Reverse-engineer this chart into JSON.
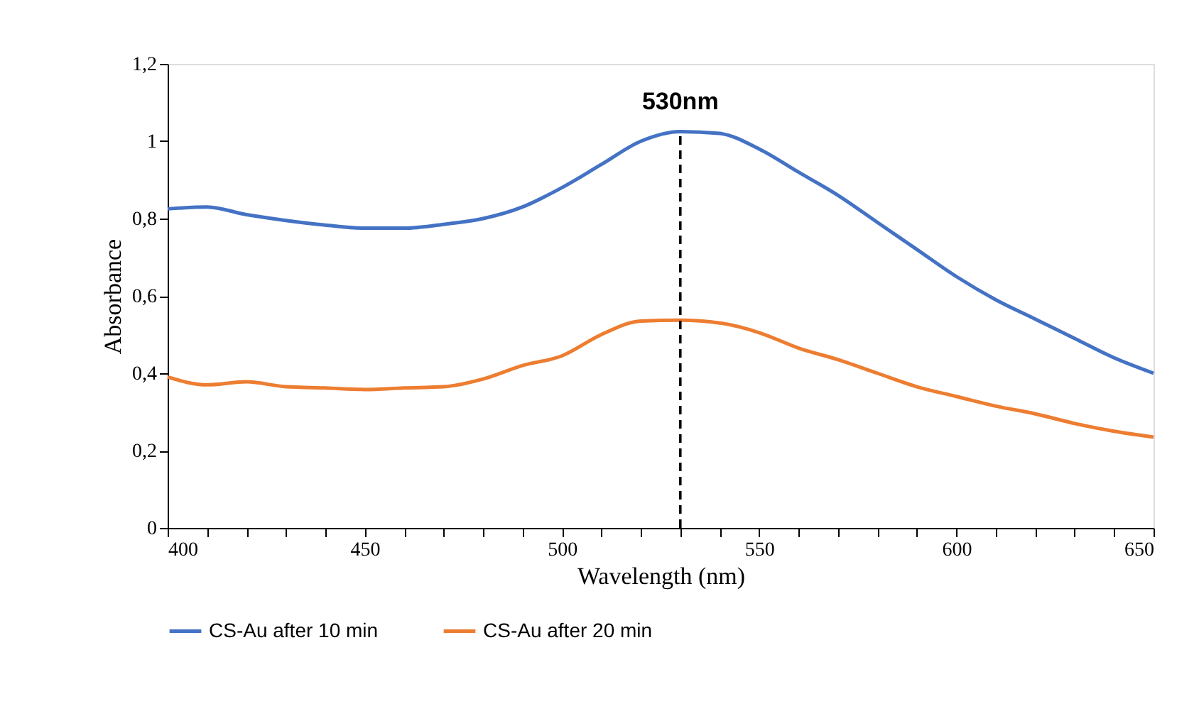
{
  "chart_data": {
    "type": "line",
    "xlabel": "Wavelength  (nm)",
    "ylabel": "Absorbance",
    "x": [
      400,
      410,
      420,
      430,
      440,
      450,
      460,
      470,
      480,
      490,
      500,
      510,
      520,
      530,
      540,
      550,
      560,
      570,
      580,
      590,
      600,
      610,
      620,
      630,
      640,
      650
    ],
    "series": [
      {
        "name": "CS-Au after 10 min",
        "color": "#4472c4",
        "values": [
          0.825,
          0.83,
          0.81,
          0.795,
          0.783,
          0.775,
          0.775,
          0.785,
          0.8,
          0.83,
          0.88,
          0.94,
          1.0,
          1.025,
          1.02,
          0.98,
          0.92,
          0.86,
          0.79,
          0.72,
          0.65,
          0.59,
          0.54,
          0.49,
          0.44,
          0.4
        ]
      },
      {
        "name": "CS-Au after 20 min",
        "color": "#ed7d31",
        "values": [
          0.39,
          0.37,
          0.378,
          0.365,
          0.362,
          0.358,
          0.362,
          0.365,
          0.385,
          0.42,
          0.445,
          0.5,
          0.535,
          0.537,
          0.53,
          0.505,
          0.465,
          0.435,
          0.4,
          0.365,
          0.34,
          0.315,
          0.295,
          0.27,
          0.25,
          0.235
        ]
      }
    ],
    "xlim": [
      400,
      650
    ],
    "xticks": [
      400,
      {
        "value": 410,
        "label": null
      },
      {
        "value": 420,
        "label": null
      },
      {
        "value": 430,
        "label": null
      },
      {
        "value": 440,
        "label": null
      },
      450,
      {
        "value": 460,
        "label": null
      },
      {
        "value": 470,
        "label": null
      },
      {
        "value": 480,
        "label": null
      },
      {
        "value": 490,
        "label": null
      },
      500,
      {
        "value": 510,
        "label": null
      },
      {
        "value": 520,
        "label": null
      },
      {
        "value": 530,
        "label": null
      },
      {
        "value": 540,
        "label": null
      },
      550,
      {
        "value": 560,
        "label": null
      },
      {
        "value": 570,
        "label": null
      },
      {
        "value": 580,
        "label": null
      },
      {
        "value": 590,
        "label": null
      },
      600,
      {
        "value": 610,
        "label": null
      },
      {
        "value": 620,
        "label": null
      },
      {
        "value": 630,
        "label": null
      },
      {
        "value": 640,
        "label": null
      },
      650
    ],
    "ylim": [
      0,
      1.2
    ],
    "yticks": [
      0,
      {
        "value": 0.2,
        "label": "0,2"
      },
      {
        "value": 0.4,
        "label": "0,4"
      },
      {
        "value": 0.6,
        "label": "0,6"
      },
      {
        "value": 0.8,
        "label": "0,8"
      },
      1,
      {
        "value": 1.2,
        "label": "1,2"
      }
    ],
    "ref_lines": [
      {
        "axis": "x",
        "value": 530,
        "label": "530nm",
        "color": "#000000",
        "line_style": "dashed"
      }
    ],
    "grid": false,
    "legend": "bottom",
    "marker": "none",
    "line_style": "solid"
  }
}
